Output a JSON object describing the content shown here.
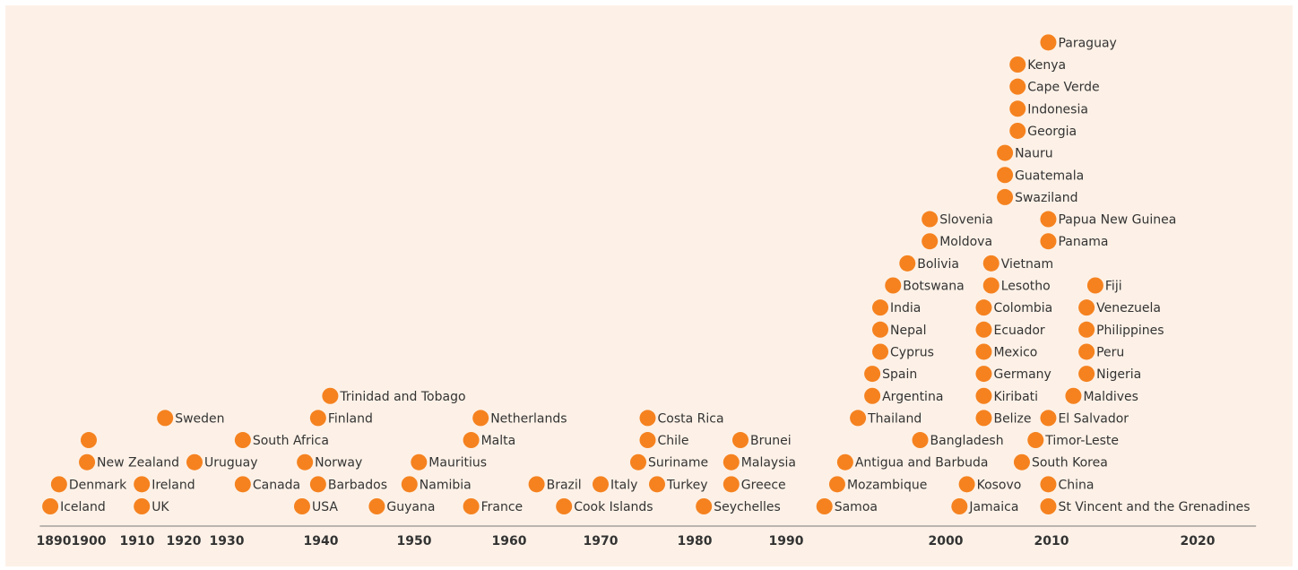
{
  "chart_data": {
    "type": "scatter",
    "color": "#f5821f",
    "labels": [
      "Iceland",
      "Denmark",
      "New Zealand",
      null,
      "Ireland",
      "UK",
      "Sweden",
      "Uruguay",
      "South Africa",
      "Canada",
      "USA",
      "Norway",
      "Barbados",
      "Finland",
      "Trinidad and Tobago",
      "Guyana",
      "Namibia",
      "Mauritius",
      "France",
      "Malta",
      "Netherlands",
      "Brazil",
      "Cook Islands",
      "Italy",
      "Suriname",
      "Chile",
      "Costa Rica",
      "Turkey",
      "Seychelles",
      "Greece",
      "Malaysia",
      "Brunei",
      "Samoa",
      "Mozambique",
      "Antigua and Barbuda",
      "Thailand",
      "Argentina",
      "Spain",
      "Cyprus",
      "Nepal",
      "India",
      "Botswana",
      "Bolivia",
      "Bangladesh",
      "Moldova",
      "Slovenia",
      "Jamaica",
      "Kosovo",
      "Belize",
      "Kiribati",
      "Germany",
      "Mexico",
      "Ecuador",
      "Colombia",
      "Lesotho",
      "Vietnam",
      "Swaziland",
      "Guatemala",
      "Nauru",
      "Georgia",
      "Indonesia",
      "Cape Verde",
      "Kenya",
      "South Korea",
      "Timor-Leste",
      "El Salvador",
      "China",
      "St Vincent and the Grenadines",
      "Panama",
      "Papua New Guinea",
      "Paraguay",
      "Maldives",
      "Nigeria",
      "Peru",
      "Philippines",
      "Venezuela",
      "Fiji"
    ],
    "x": [
      1889,
      1891.5,
      1899.5,
      1900,
      1911,
      1911,
      1916,
      1922.5,
      1931.7,
      1931.7,
      1938,
      1938.3,
      1939.7,
      1939.7,
      1941,
      1946,
      1949.5,
      1950.5,
      1956,
      1956,
      1957,
      1963,
      1966,
      1970,
      1974,
      1975,
      1975,
      1976,
      1981,
      1984,
      1984,
      1985,
      1992.4,
      1993.2,
      1993.7,
      1994.5,
      1995.4,
      1995.4,
      1995.9,
      1995.9,
      1995.9,
      1996.7,
      1997.6,
      1998.4,
      1999,
      1999,
      2001.3,
      2002,
      2003.6,
      2003.6,
      2003.6,
      2003.6,
      2003.6,
      2003.6,
      2004.3,
      2004.3,
      2005.6,
      2005.6,
      2005.6,
      2006.8,
      2006.8,
      2006.8,
      2006.8,
      2007.2,
      2008.5,
      2009.7,
      2009.7,
      2009.7,
      2009.7,
      2009.7,
      2009.7,
      2011.5,
      2012.4,
      2012.4,
      2012.4,
      2012.4,
      2013
    ],
    "values": [
      1,
      2,
      3,
      4,
      2,
      1,
      5,
      3,
      4,
      2,
      1,
      3,
      2,
      5,
      6,
      1,
      2,
      3,
      1,
      4,
      5,
      2,
      1,
      2,
      3,
      4,
      5,
      2,
      1,
      2,
      3,
      4,
      1,
      2,
      3,
      5,
      6,
      7,
      8,
      9,
      10,
      11,
      12,
      4,
      13,
      14,
      1,
      2,
      5,
      6,
      7,
      8,
      9,
      10,
      11,
      12,
      15,
      16,
      17,
      18,
      19,
      20,
      21,
      3,
      4,
      5,
      2,
      1,
      13,
      14,
      22,
      6,
      7,
      8,
      9,
      10,
      11
    ],
    "xlim": [
      1886,
      2024
    ],
    "xticks": [
      1890,
      1900,
      1910,
      1920,
      1930,
      1940,
      1950,
      1960,
      1970,
      1980,
      1990,
      2000,
      2010,
      2020
    ]
  }
}
